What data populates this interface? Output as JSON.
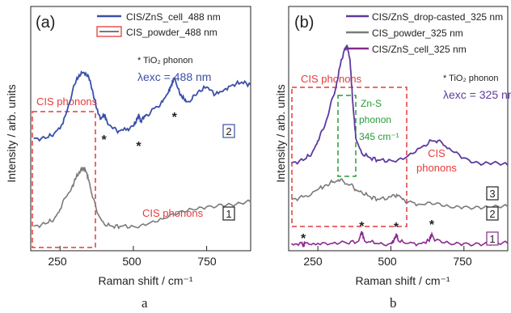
{
  "colors": {
    "blue": "#3a4fa8",
    "gray": "#7a7a7a",
    "purple": "#8a2a8e",
    "purple_text": "#5e3a9e",
    "red": "#e63a3a",
    "green": "#2a9a3a",
    "dark": "#222222"
  },
  "chart_data": [
    {
      "type": "line",
      "panel_label": "(a)",
      "xlabel": "Raman shift / cm⁻¹",
      "ylabel": "Intensity / arb. units",
      "xlim": [
        150,
        900
      ],
      "xticks": [
        "250",
        "500",
        "750"
      ],
      "legend": {
        "placement": "top-right",
        "entries": [
          "CIS/ZnS_cell_488 nm",
          "CIS_powder_488 nm"
        ]
      },
      "annotations": {
        "tio2_note": "* TiO₂ phonon",
        "excitation": "λexc = 488 nm",
        "cis_phonons_box_label": "CIS phonons",
        "cis_phonons_text": "CIS phonons",
        "curve_tag_1": "1",
        "curve_tag_2": "2",
        "star_positions": [
          400,
          518,
          640
        ]
      },
      "series": [
        {
          "name": "CIS/ZnS_cell_488 nm",
          "x": [
            160,
            200,
            230,
            260,
            280,
            300,
            315,
            330,
            345,
            360,
            375,
            390,
            400,
            410,
            430,
            450,
            480,
            500,
            510,
            518,
            525,
            540,
            560,
            580,
            600,
            620,
            630,
            640,
            650,
            665,
            680,
            700,
            720,
            750,
            780,
            810,
            840,
            870,
            900
          ],
          "y": [
            0.46,
            0.46,
            0.48,
            0.52,
            0.6,
            0.68,
            0.72,
            0.73,
            0.72,
            0.66,
            0.58,
            0.54,
            0.56,
            0.53,
            0.5,
            0.49,
            0.5,
            0.51,
            0.53,
            0.56,
            0.53,
            0.55,
            0.57,
            0.59,
            0.61,
            0.65,
            0.68,
            0.71,
            0.67,
            0.63,
            0.61,
            0.62,
            0.65,
            0.67,
            0.64,
            0.66,
            0.68,
            0.69,
            0.68
          ]
        },
        {
          "name": "CIS_powder_488 nm",
          "x": [
            160,
            200,
            230,
            250,
            270,
            290,
            305,
            320,
            330,
            340,
            350,
            360,
            380,
            400,
            430,
            460,
            500,
            550,
            600,
            650,
            700,
            750,
            800,
            850,
            900
          ],
          "y": [
            0.1,
            0.11,
            0.13,
            0.17,
            0.22,
            0.26,
            0.3,
            0.33,
            0.34,
            0.32,
            0.28,
            0.22,
            0.15,
            0.11,
            0.1,
            0.1,
            0.1,
            0.11,
            0.13,
            0.15,
            0.17,
            0.18,
            0.19,
            0.19,
            0.2
          ]
        }
      ]
    },
    {
      "type": "line",
      "panel_label": "(b)",
      "xlabel": "Raman shift / cm⁻¹",
      "ylabel": "Intensity / arb. units",
      "xlim": [
        150,
        900
      ],
      "xticks": [
        "250",
        "500",
        "750"
      ],
      "legend": {
        "placement": "top-right",
        "entries": [
          "CIS/ZnS_drop-casted_325 nm",
          "CIS_powder_325 nm",
          "CIS/ZnS_cell_325 nm"
        ]
      },
      "annotations": {
        "tio2_note": "* TiO₂ phonon",
        "excitation": "λexc = 325 nm",
        "cis_phonons_box_label": "CIS phonons",
        "zns_label_1": "Zn-S",
        "zns_label_2": "phonon",
        "zns_label_3": "345 cm⁻¹",
        "cis_phonons_right_1": "CIS",
        "cis_phonons_right_2": "phonons",
        "curve_tag_1": "1",
        "curve_tag_2": "2",
        "curve_tag_3": "3",
        "star_positions": [
          200,
          400,
          518,
          640
        ]
      },
      "series": [
        {
          "name": "CIS/ZnS_drop-casted_325 nm",
          "x": [
            160,
            200,
            230,
            250,
            270,
            290,
            310,
            325,
            340,
            350,
            360,
            370,
            380,
            400,
            430,
            460,
            500,
            550,
            600,
            640,
            660,
            700,
            750,
            800,
            850,
            900
          ],
          "y": [
            0.36,
            0.37,
            0.4,
            0.45,
            0.5,
            0.58,
            0.66,
            0.75,
            0.82,
            0.84,
            0.78,
            0.6,
            0.46,
            0.4,
            0.38,
            0.37,
            0.37,
            0.38,
            0.42,
            0.45,
            0.45,
            0.42,
            0.38,
            0.36,
            0.36,
            0.35
          ]
        },
        {
          "name": "CIS_powder_325 nm",
          "x": [
            160,
            200,
            250,
            280,
            300,
            320,
            340,
            360,
            380,
            400,
            430,
            460,
            500,
            520,
            540,
            560,
            600,
            650,
            700,
            750,
            800,
            850,
            900
          ],
          "y": [
            0.21,
            0.22,
            0.25,
            0.27,
            0.28,
            0.29,
            0.28,
            0.27,
            0.25,
            0.24,
            0.22,
            0.21,
            0.22,
            0.23,
            0.21,
            0.2,
            0.19,
            0.19,
            0.18,
            0.18,
            0.18,
            0.18,
            0.18
          ]
        },
        {
          "name": "CIS/ZnS_cell_325 nm",
          "x": [
            160,
            195,
            200,
            205,
            250,
            300,
            350,
            390,
            400,
            410,
            450,
            500,
            510,
            518,
            526,
            560,
            600,
            630,
            640,
            650,
            700,
            750,
            800,
            850,
            900
          ],
          "y": [
            0.03,
            0.03,
            0.02,
            0.03,
            0.03,
            0.03,
            0.03,
            0.04,
            0.08,
            0.04,
            0.03,
            0.03,
            0.04,
            0.07,
            0.04,
            0.03,
            0.03,
            0.04,
            0.07,
            0.04,
            0.03,
            0.03,
            0.03,
            0.03,
            0.03
          ]
        }
      ]
    }
  ],
  "figure_labels": {
    "left": "a",
    "right": "b"
  }
}
